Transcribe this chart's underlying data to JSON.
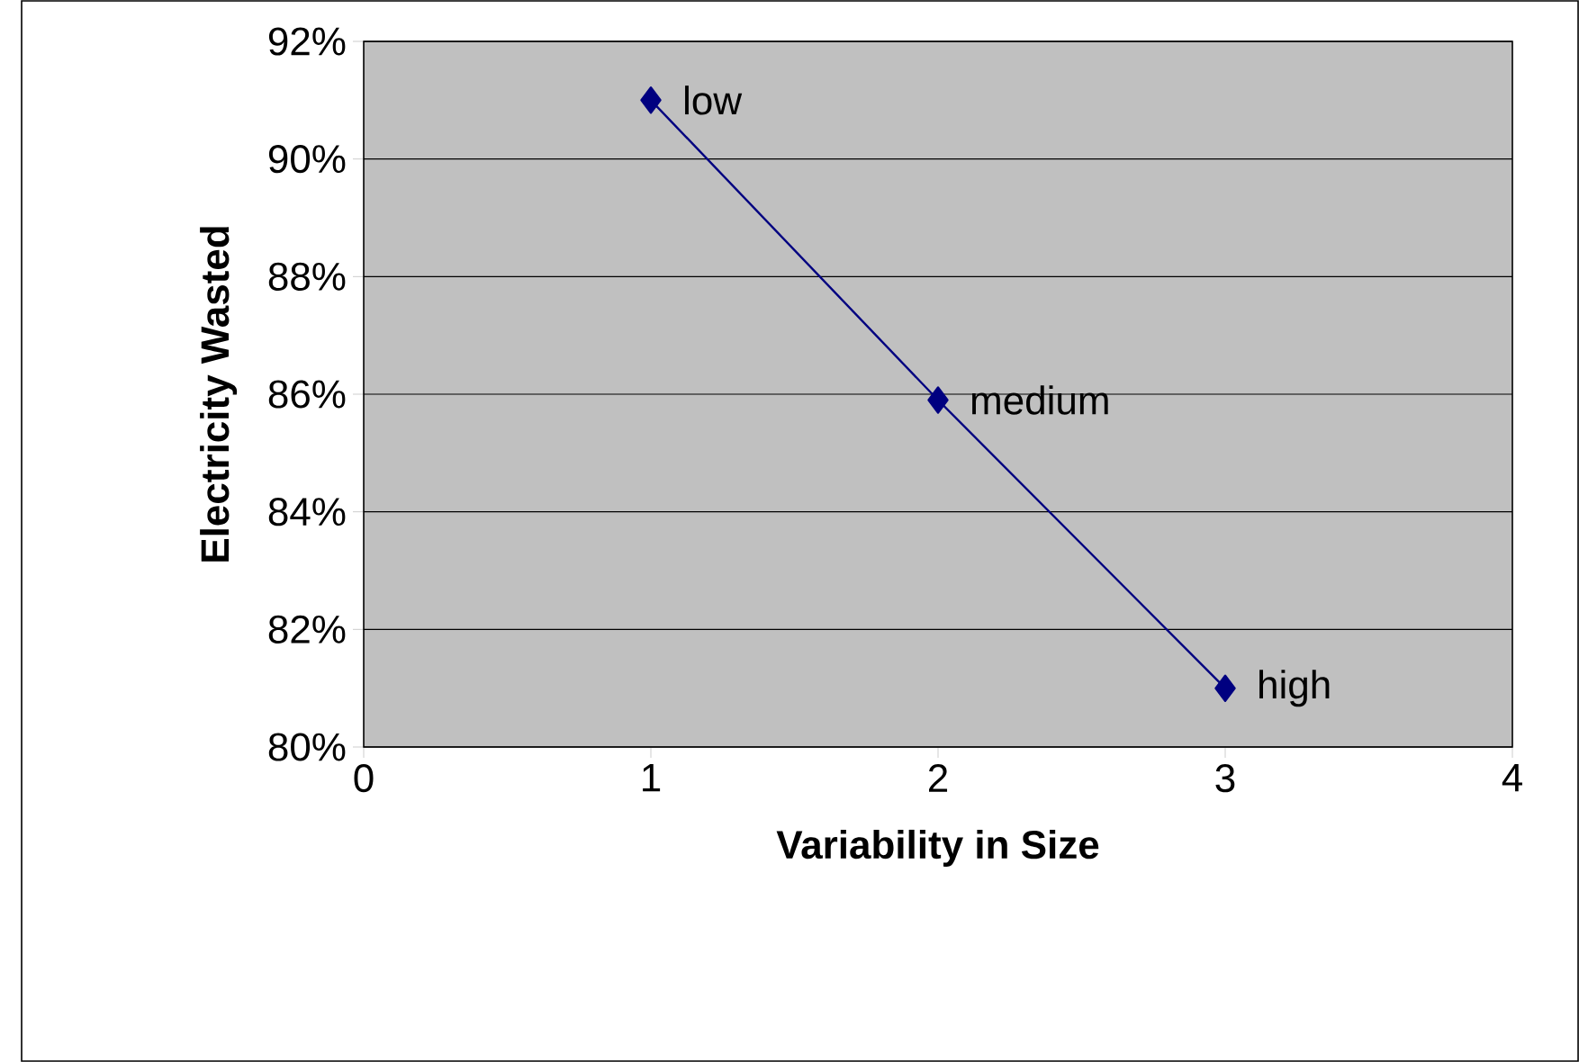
{
  "chart_data": {
    "type": "line",
    "xlabel": "Variability in Size",
    "ylabel": "Electricity Wasted",
    "x": [
      1,
      2,
      3
    ],
    "series": [
      {
        "color": "#000080",
        "values": [
          91,
          85.9,
          81
        ]
      }
    ],
    "xlim": [
      0,
      4
    ],
    "xticks": [
      0,
      1,
      2,
      3,
      4
    ],
    "ylim": [
      80,
      92
    ],
    "yticks": [
      {
        "value": 80,
        "label": "80%"
      },
      {
        "value": 82,
        "label": "82%"
      },
      {
        "value": 84,
        "label": "84%"
      },
      {
        "value": 86,
        "label": "86%"
      },
      {
        "value": 88,
        "label": "88%"
      },
      {
        "value": 90,
        "label": "90%"
      },
      {
        "value": 92,
        "label": "92%"
      }
    ],
    "grid": "y",
    "marker": "diamond",
    "line_style": "solid",
    "annotations": [
      {
        "text": "low",
        "x": 1,
        "y": 91
      },
      {
        "text": "medium",
        "x": 2,
        "y": 85.9
      },
      {
        "text": "high",
        "x": 3,
        "y": 81
      }
    ]
  }
}
